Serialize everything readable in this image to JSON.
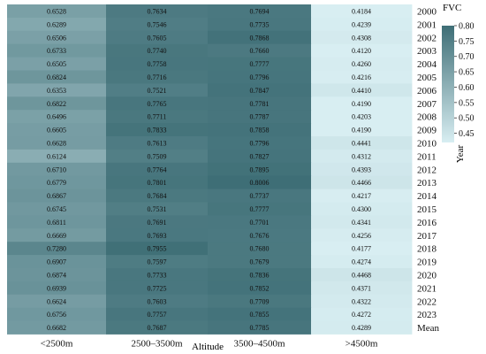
{
  "chart_data": {
    "type": "heatmap",
    "title": "",
    "xlabel": "Altitude",
    "ylabel": "Year",
    "x_categories": [
      "<2500m",
      "2500–3500m",
      "3500–4500m",
      ">4500m"
    ],
    "y_categories": [
      "2000",
      "2001",
      "2002",
      "2003",
      "2004",
      "2005",
      "2006",
      "2007",
      "2008",
      "2009",
      "2010",
      "2011",
      "2012",
      "2013",
      "2014",
      "2015",
      "2016",
      "2017",
      "2018",
      "2019",
      "2020",
      "2021",
      "2022",
      "2023",
      "Mean"
    ],
    "values": [
      [
        0.6528,
        0.7634,
        0.7694,
        0.4184
      ],
      [
        0.6289,
        0.7546,
        0.7735,
        0.4239
      ],
      [
        0.6506,
        0.7605,
        0.7868,
        0.4308
      ],
      [
        0.6733,
        0.774,
        0.766,
        0.412
      ],
      [
        0.6505,
        0.7758,
        0.7777,
        0.426
      ],
      [
        0.6824,
        0.7716,
        0.7796,
        0.4216
      ],
      [
        0.6353,
        0.7521,
        0.7847,
        0.441
      ],
      [
        0.6822,
        0.7765,
        0.7781,
        0.419
      ],
      [
        0.6496,
        0.7711,
        0.7787,
        0.4203
      ],
      [
        0.6605,
        0.7833,
        0.7858,
        0.419
      ],
      [
        0.6628,
        0.7613,
        0.7796,
        0.4441
      ],
      [
        0.6124,
        0.7509,
        0.7827,
        0.4312
      ],
      [
        0.671,
        0.7764,
        0.7895,
        0.4393
      ],
      [
        0.6779,
        0.7801,
        0.8006,
        0.4466
      ],
      [
        0.6867,
        0.7684,
        0.7737,
        0.4217
      ],
      [
        0.6745,
        0.7531,
        0.7777,
        0.43
      ],
      [
        0.6811,
        0.7691,
        0.7701,
        0.4341
      ],
      [
        0.6669,
        0.7693,
        0.7676,
        0.4256
      ],
      [
        0.728,
        0.7955,
        0.768,
        0.4177
      ],
      [
        0.6907,
        0.7597,
        0.7679,
        0.4274
      ],
      [
        0.6874,
        0.7733,
        0.7836,
        0.4468
      ],
      [
        0.6939,
        0.7725,
        0.7852,
        0.4371
      ],
      [
        0.6624,
        0.7603,
        0.7709,
        0.4322
      ],
      [
        0.6756,
        0.7757,
        0.7855,
        0.4272
      ],
      [
        0.6682,
        0.7687,
        0.7785,
        0.4289
      ]
    ],
    "colorbar": {
      "label": "FVC",
      "min": 0.42,
      "max": 0.8,
      "ticks": [
        "0.45",
        "0.50",
        "0.55",
        "0.60",
        "0.65",
        "0.70",
        "0.75",
        "0.80"
      ],
      "color_low": "#d8eef2",
      "color_high": "#3e6e76"
    },
    "grid": false,
    "legend": "right"
  }
}
